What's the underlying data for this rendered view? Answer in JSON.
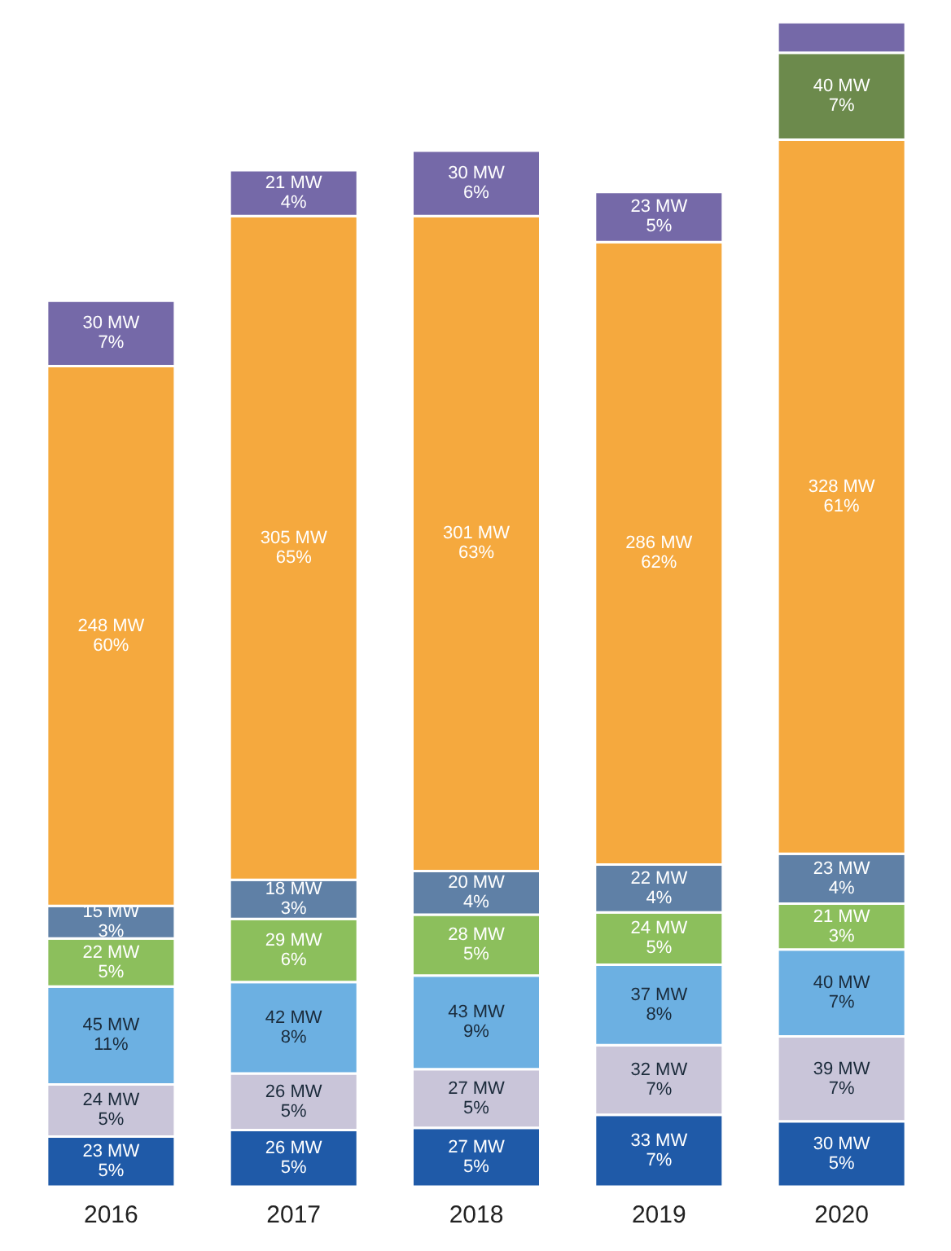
{
  "chart_data": {
    "type": "bar",
    "stacked": true,
    "categories": [
      "2016",
      "2017",
      "2018",
      "2019",
      "2020"
    ],
    "tick_labels": "x",
    "series": [
      {
        "color": "#1f5aa8",
        "values": [
          23,
          26,
          27,
          33,
          30
        ],
        "value_labels": [
          "23 MW\n5%",
          "26 MW\n5%",
          "27 MW\n5%",
          "33 MW\n7%",
          "30 MW\n5%"
        ]
      },
      {
        "color": "#c9c5d9",
        "values": [
          24,
          26,
          27,
          32,
          39
        ],
        "value_labels": [
          "24 MW\n5%",
          "26 MW\n5%",
          "27 MW\n5%",
          "32 MW\n7%",
          "39 MW\n7%"
        ]
      },
      {
        "color": "#6cb0e2",
        "values": [
          45,
          42,
          43,
          37,
          40
        ],
        "value_labels": [
          "45 MW\n11%",
          "42 MW\n8%",
          "43 MW\n9%",
          "37 MW\n8%",
          "40 MW\n7%"
        ]
      },
      {
        "color": "#8cbf5c",
        "values": [
          22,
          29,
          28,
          24,
          21
        ],
        "value_labels": [
          "22 MW\n5%",
          "29 MW\n6%",
          "28 MW\n5%",
          "24 MW\n5%",
          "21 MW\n3%"
        ]
      },
      {
        "color": "#5f80a6",
        "values": [
          15,
          18,
          20,
          22,
          23
        ],
        "value_labels": [
          "15 MW\n3%",
          "18 MW\n3%",
          "20 MW\n4%",
          "22 MW\n4%",
          "23 MW\n4%"
        ]
      },
      {
        "color": "#f5a93e",
        "values": [
          248,
          305,
          301,
          286,
          328
        ],
        "value_labels": [
          "248 MW\n60%",
          "305 MW\n65%",
          "301 MW\n63%",
          "286 MW\n62%",
          "328 MW\n61%"
        ]
      },
      {
        "color": "#6c8a4c",
        "values": [
          null,
          null,
          null,
          null,
          40
        ],
        "value_labels": [
          null,
          null,
          null,
          null,
          "40 MW\n7%"
        ]
      },
      {
        "color": "#7569a8",
        "values": [
          30,
          21,
          30,
          23,
          14
        ],
        "value_labels": [
          "30 MW\n7%",
          "21 MW\n4%",
          "30 MW\n6%",
          "23 MW\n5%",
          null
        ]
      }
    ]
  }
}
